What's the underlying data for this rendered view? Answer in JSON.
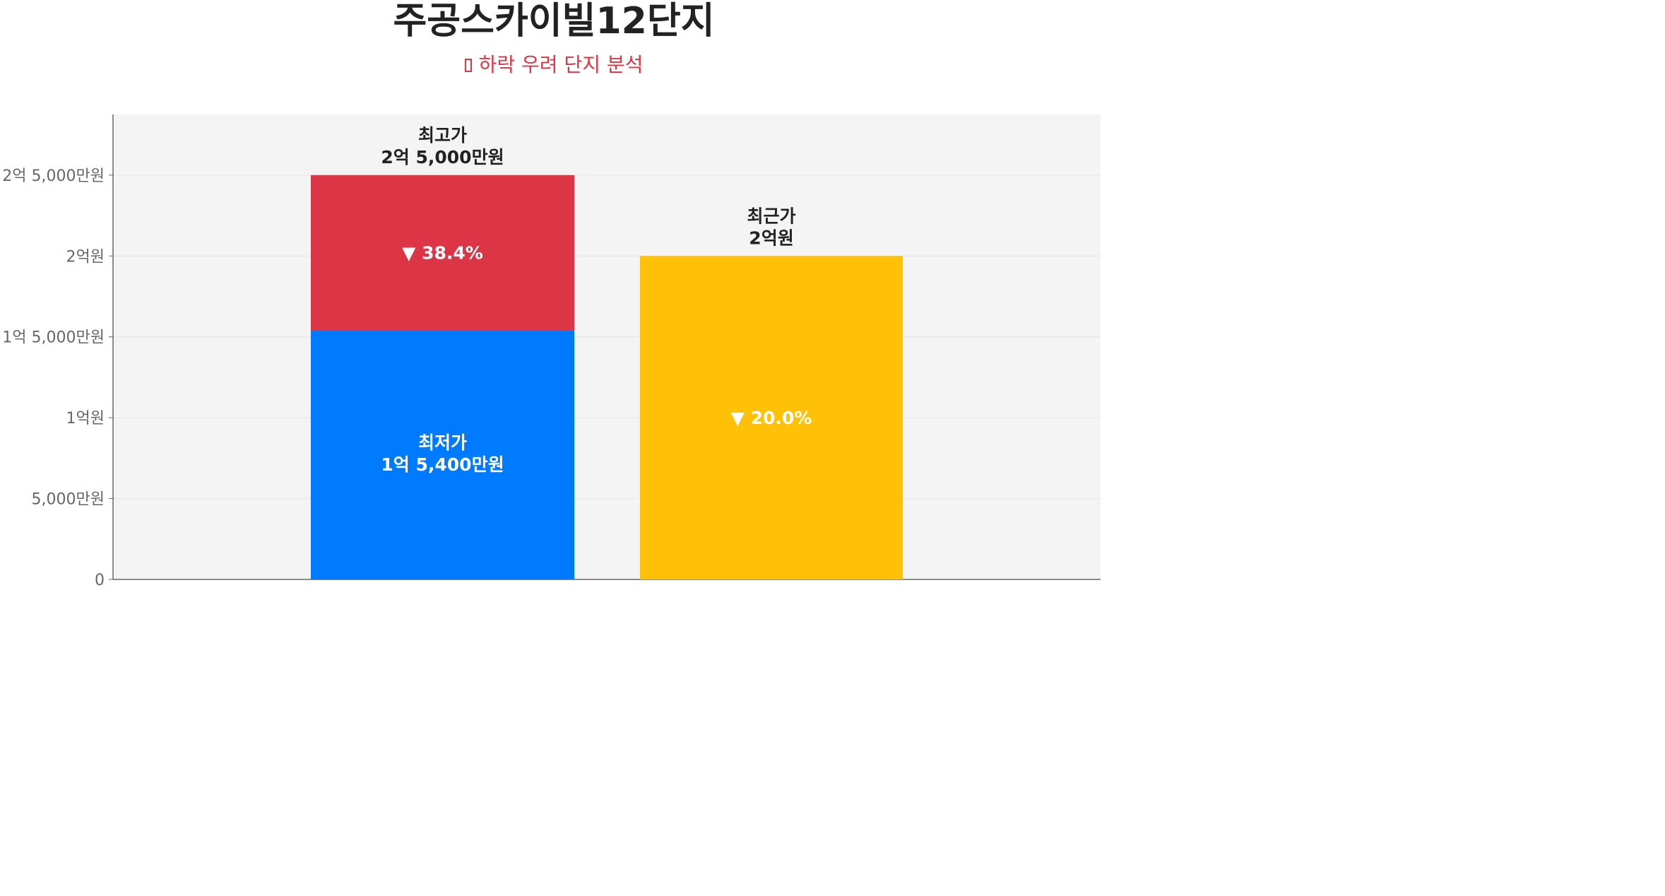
{
  "title": "주공스카이빌12단지",
  "subtitle": "하락 우려 단지 분석",
  "colors": {
    "plot_bg": "#f4f4f4",
    "max_drop": "#dc3545",
    "min_bar": "#007bff",
    "recent_bar": "#ffc107",
    "subtitle": "#dc3545"
  },
  "chart_data": {
    "type": "bar",
    "ylim": [
      0,
      287500000
    ],
    "yticks": [
      {
        "value": 0,
        "label": "0"
      },
      {
        "value": 50000000,
        "label": "5,000만원"
      },
      {
        "value": 100000000,
        "label": "1억원"
      },
      {
        "value": 150000000,
        "label": "1억 5,000만원"
      },
      {
        "value": 200000000,
        "label": "2억원"
      },
      {
        "value": 250000000,
        "label": "2억 5,000만원"
      }
    ],
    "grid": true,
    "bars": [
      {
        "max_value": 250000000,
        "max_title": "최고가",
        "max_label": "2억 5,000만원",
        "min_value": 154000000,
        "min_title": "최저가",
        "min_label": "1억 5,400만원",
        "drop_label": "▼ 38.4%"
      },
      {
        "value": 200000000,
        "title": "최근가",
        "label": "2억원",
        "drop_label": "▼ 20.0%"
      }
    ]
  }
}
